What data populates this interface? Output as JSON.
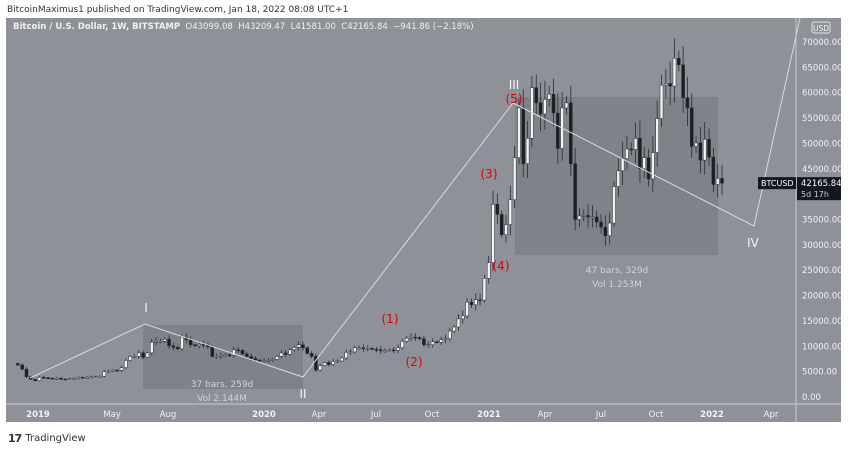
{
  "publisher_line": "BitcoinMaximus1 published on TradingView.com, Jan 18, 2022 08:08 UTC+1",
  "legend": {
    "symbol": "Bitcoin / U.S. Dollar, 1W, BITSTAMP",
    "open_label": "O",
    "open": "43099.08",
    "high_label": "H",
    "high": "43209.47",
    "low_label": "L",
    "low": "41581.00",
    "close_label": "C",
    "close": "42165.84",
    "change": "−941.86 (−2.18%)"
  },
  "currency": "USD",
  "price_ticks": [
    "70000.00",
    "65000.00",
    "60000.00",
    "55000.00",
    "50000.00",
    "45000.00",
    "40000.00",
    "35000.00",
    "30000.00",
    "25000.00",
    "20000.00",
    "15000.00",
    "10000.00",
    "5000.00",
    "0.00"
  ],
  "last_price": {
    "symbol": "BTCUSD",
    "price": "42165.84",
    "countdown": "5d 17h"
  },
  "time_ticks": [
    {
      "label": "2019",
      "year": true
    },
    {
      "label": "May"
    },
    {
      "label": "Aug"
    },
    {
      "label": "2020",
      "year": true
    },
    {
      "label": "Apr"
    },
    {
      "label": "Jul"
    },
    {
      "label": "Oct"
    },
    {
      "label": "2021",
      "year": true
    },
    {
      "label": "Apr"
    },
    {
      "label": "Jul"
    },
    {
      "label": "Oct"
    },
    {
      "label": "2022",
      "year": true
    },
    {
      "label": "Apr"
    }
  ],
  "waves": {
    "I": "I",
    "II": "II",
    "III": "III",
    "IV": "IV",
    "s1": "(1)",
    "s2": "(2)",
    "s3": "(3)",
    "s4": "(4)",
    "s5": "(5)"
  },
  "ranges": [
    {
      "bars": "37 bars, 259d",
      "vol": "Vol 2.144M"
    },
    {
      "bars": "47 bars, 329d",
      "vol": "Vol 1.253M"
    }
  ],
  "colors": {
    "background": "#8f9199",
    "range_box": "#80828a",
    "up": "#f2f3f5",
    "down": "#1c1e24",
    "wave_red": "#e00000",
    "line": "#d8dae0"
  },
  "weekly_closes": [
    6300,
    5500,
    4000,
    3500,
    3200,
    3900,
    3800,
    3700,
    3600,
    3700,
    3550,
    3500,
    3600,
    3650,
    3900,
    3800,
    3900,
    3950,
    4000,
    4100,
    5000,
    5100,
    5300,
    5250,
    5800,
    7200,
    8000,
    8000,
    8700,
    7800,
    8700,
    10800,
    11000,
    11000,
    11400,
    10100,
    9800,
    9500,
    11800,
    11300,
    10300,
    10100,
    10400,
    10300,
    9900,
    8000,
    8000,
    8200,
    8300,
    8200,
    9300,
    9200,
    8500,
    8000,
    7600,
    7300,
    7100,
    7200,
    7200,
    7400,
    8000,
    8700,
    8400,
    9300,
    9800,
    10300,
    9700,
    8600,
    8000,
    5300,
    6200,
    6800,
    6400,
    7000,
    7100,
    7700,
    8800,
    8900,
    9700,
    9700,
    9500,
    9600,
    9400,
    9300,
    9100,
    9100,
    9300,
    9200,
    9700,
    11000,
    11600,
    11800,
    11700,
    11500,
    10300,
    10300,
    10900,
    10800,
    11300,
    11500,
    13000,
    13800,
    15400,
    16000,
    18700,
    18200,
    19200,
    19100,
    23400,
    26500,
    38000,
    36000,
    32000,
    34000,
    38900,
    47200,
    57000,
    46000,
    51000,
    61000,
    58000,
    55800,
    58700,
    59700,
    56000,
    49000,
    57000,
    58000,
    46000,
    35000,
    35700,
    35800,
    35500,
    35500,
    34500,
    33500,
    31800,
    34300,
    41500,
    44600,
    47000,
    48900,
    48800,
    51000,
    45000,
    47200,
    43000,
    48200,
    54900,
    61500,
    61800,
    61300,
    66800,
    65500,
    59000,
    57000,
    49400,
    50100,
    46700,
    50800,
    47300,
    41900,
    43100,
    42165.84
  ],
  "footer_logo": "TradingView"
}
